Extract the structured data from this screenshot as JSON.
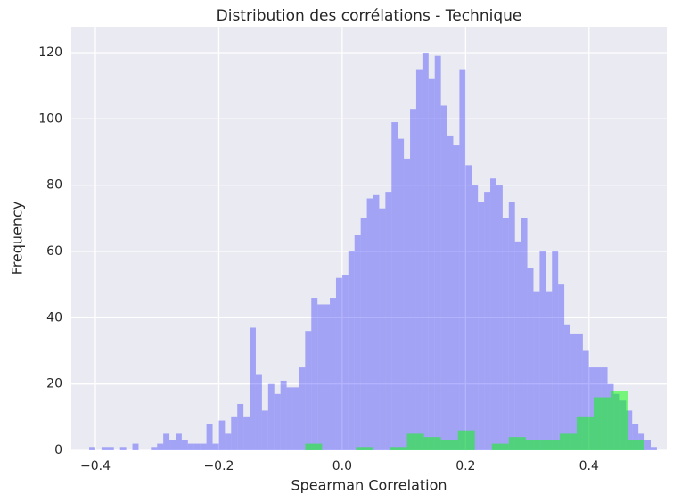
{
  "chart_data": {
    "type": "histogram",
    "title": "Distribution des corrélations - Technique",
    "x_label": "Spearman Correlation",
    "y_label": "Frequency",
    "xlim": [
      -0.439,
      0.526
    ],
    "ylim": [
      0,
      127.8
    ],
    "xticks": [
      {
        "value": -0.4,
        "label": "−0.4"
      },
      {
        "value": -0.2,
        "label": "−0.2"
      },
      {
        "value": 0,
        "label": "0.0"
      },
      {
        "value": 0.2,
        "label": "0.2"
      },
      {
        "value": 0.4,
        "label": "0.4"
      }
    ],
    "yticks": [
      0,
      20,
      40,
      60,
      80,
      100,
      120
    ],
    "grid": true,
    "series": [
      {
        "color": "#0000ff",
        "alpha": 0.3,
        "bins": [
          -0.41,
          -0.4,
          -0.39,
          -0.38,
          -0.37,
          -0.36,
          -0.35,
          -0.34,
          -0.33,
          -0.32,
          -0.31,
          -0.3,
          -0.29,
          -0.28,
          -0.27,
          -0.26,
          -0.25,
          -0.24,
          -0.23,
          -0.22,
          -0.21,
          -0.2,
          -0.19,
          -0.18,
          -0.17,
          -0.16,
          -0.15,
          -0.14,
          -0.13,
          -0.12,
          -0.11,
          -0.1,
          -0.09,
          -0.08,
          -0.07,
          -0.06,
          -0.05,
          -0.04,
          -0.03,
          -0.02,
          -0.01,
          0,
          0.01,
          0.02,
          0.03,
          0.04,
          0.05,
          0.06,
          0.07,
          0.08,
          0.09,
          0.1,
          0.11,
          0.12,
          0.13,
          0.14,
          0.15,
          0.16,
          0.17,
          0.18,
          0.19,
          0.2,
          0.21,
          0.22,
          0.23,
          0.24,
          0.25,
          0.26,
          0.27,
          0.28,
          0.29,
          0.3,
          0.31,
          0.32,
          0.33,
          0.34,
          0.35,
          0.36,
          0.37,
          0.38,
          0.39,
          0.4,
          0.41,
          0.42,
          0.43,
          0.44,
          0.45,
          0.46,
          0.47,
          0.48,
          0.49,
          0.5,
          0.51
        ],
        "values": [
          1,
          0,
          1,
          1,
          0,
          1,
          0,
          2,
          0,
          0,
          1,
          2,
          5,
          3,
          5,
          3,
          2,
          2,
          2,
          8,
          2,
          9,
          5,
          10,
          14,
          10,
          37,
          23,
          12,
          20,
          17,
          21,
          19,
          19,
          25,
          36,
          46,
          44,
          44,
          46,
          52,
          53,
          60,
          65,
          70,
          76,
          77,
          73,
          78,
          99,
          94,
          88,
          103,
          115,
          120,
          112,
          119,
          104,
          95,
          92,
          115,
          86,
          80,
          75,
          78,
          82,
          80,
          70,
          75,
          63,
          70,
          55,
          48,
          60,
          48,
          60,
          50,
          38,
          35,
          35,
          30,
          25,
          25,
          25,
          20,
          17,
          15,
          12,
          8,
          5,
          3,
          1
        ]
      },
      {
        "color": "#00ff00",
        "alpha": 0.5,
        "bins": [
          -0.06,
          -0.0325,
          -0.005,
          0.0225,
          0.05,
          0.0775,
          0.105,
          0.1325,
          0.16,
          0.1875,
          0.215,
          0.2425,
          0.27,
          0.2975,
          0.325,
          0.3525,
          0.38,
          0.4075,
          0.435,
          0.4625,
          0.49
        ],
        "values": [
          2,
          0,
          0,
          1,
          0,
          1,
          5,
          4,
          3,
          6,
          0,
          2,
          4,
          3,
          3,
          5,
          10,
          16,
          18,
          3
        ]
      }
    ]
  }
}
